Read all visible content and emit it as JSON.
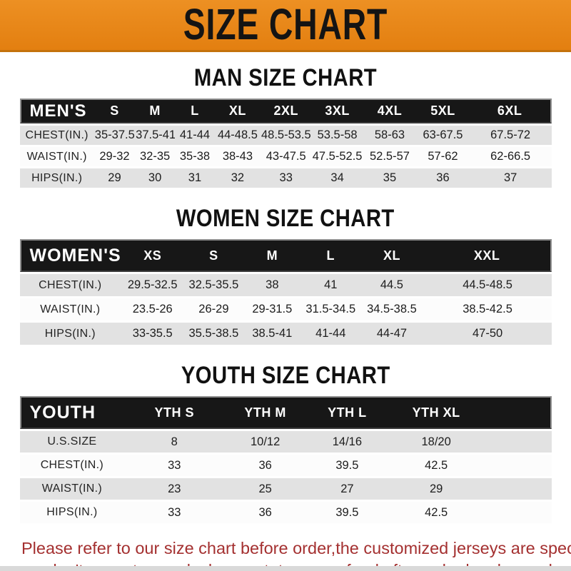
{
  "banner": {
    "title": "SIZE CHART"
  },
  "colors": {
    "banner_orange": "#E8861A",
    "header_bar_black": "#171717",
    "row_gray": "#E2E2E2",
    "footer_red": "#A43030"
  },
  "sections": [
    {
      "id": "men",
      "title": "MAN SIZE CHART",
      "group_label": "MEN'S",
      "columns": [
        "S",
        "M",
        "L",
        "XL",
        "2XL",
        "3XL",
        "4XL",
        "5XL",
        "6XL"
      ],
      "rows": [
        {
          "label": "CHEST(IN.)",
          "values": [
            "35-37.5",
            "37.5-41",
            "41-44",
            "44-48.5",
            "48.5-53.5",
            "53.5-58",
            "58-63",
            "63-67.5",
            "67.5-72"
          ]
        },
        {
          "label": "WAIST(IN.)",
          "values": [
            "29-32",
            "32-35",
            "35-38",
            "38-43",
            "43-47.5",
            "47.5-52.5",
            "52.5-57",
            "57-62",
            "62-66.5"
          ]
        },
        {
          "label": "HIPS(IN.)",
          "values": [
            "29",
            "30",
            "31",
            "32",
            "33",
            "34",
            "35",
            "36",
            "37"
          ]
        }
      ]
    },
    {
      "id": "women",
      "title": "WOMEN SIZE CHART",
      "group_label": "WOMEN'S",
      "columns": [
        "XS",
        "S",
        "M",
        "L",
        "XL",
        "XXL"
      ],
      "rows": [
        {
          "label": "CHEST(IN.)",
          "values": [
            "29.5-32.5",
            "32.5-35.5",
            "38",
            "41",
            "44.5",
            "44.5-48.5"
          ]
        },
        {
          "label": "WAIST(IN.)",
          "values": [
            "23.5-26",
            "26-29",
            "29-31.5",
            "31.5-34.5",
            "34.5-38.5",
            "38.5-42.5"
          ]
        },
        {
          "label": "HIPS(IN.)",
          "values": [
            "33-35.5",
            "35.5-38.5",
            "38.5-41",
            "41-44",
            "44-47",
            "47-50"
          ]
        }
      ]
    },
    {
      "id": "youth",
      "title": "YOUTH SIZE CHART",
      "group_label": "YOUTH",
      "columns": [
        "YTH S",
        "YTH M",
        "YTH L",
        "YTH XL"
      ],
      "rows": [
        {
          "label": "U.S.SIZE",
          "values": [
            "8",
            "10/12",
            "14/16",
            "18/20"
          ]
        },
        {
          "label": "CHEST(IN.)",
          "values": [
            "33",
            "36",
            "39.5",
            "42.5"
          ]
        },
        {
          "label": "WAIST(IN.)",
          "values": [
            "23",
            "25",
            "27",
            "29"
          ]
        },
        {
          "label": "HIPS(IN.)",
          "values": [
            "33",
            "36",
            "39.5",
            "42.5"
          ]
        }
      ]
    }
  ],
  "footer": {
    "line1": "Please refer to our size chart before order,the customized jerseys are special products,",
    "line2": "we don't accept cancel, change, teturn or refund after order has been placed!"
  }
}
